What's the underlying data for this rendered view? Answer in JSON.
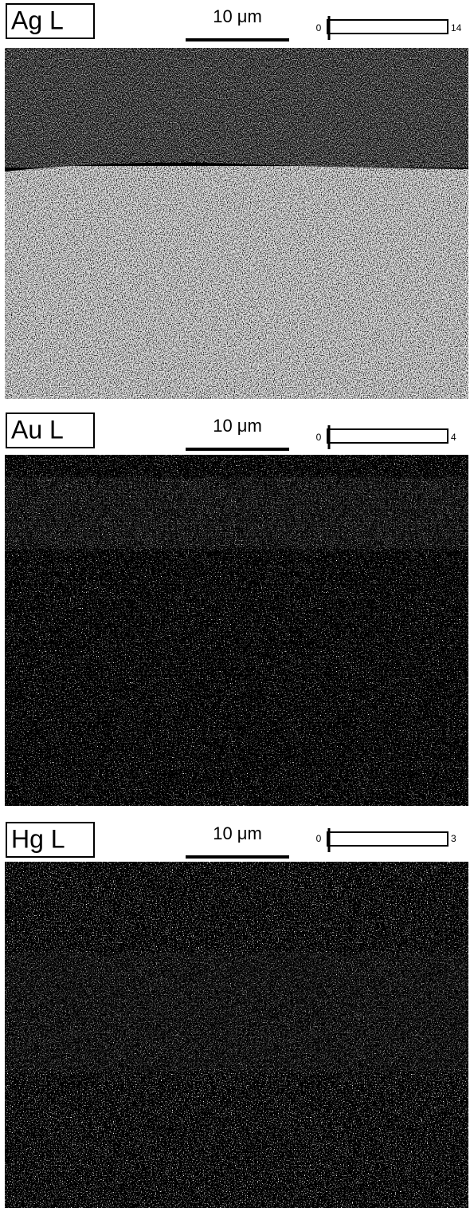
{
  "panels": [
    {
      "element": "Ag L",
      "scale_bar": "10 μm",
      "color_scale": {
        "min": 0,
        "max": 14
      }
    },
    {
      "element": "Au L",
      "scale_bar": "10 μm",
      "color_scale": {
        "min": 0,
        "max": 4
      }
    },
    {
      "element": "Hg L",
      "scale_bar": "10 μm",
      "color_scale": {
        "min": 0,
        "max": 3
      }
    }
  ]
}
